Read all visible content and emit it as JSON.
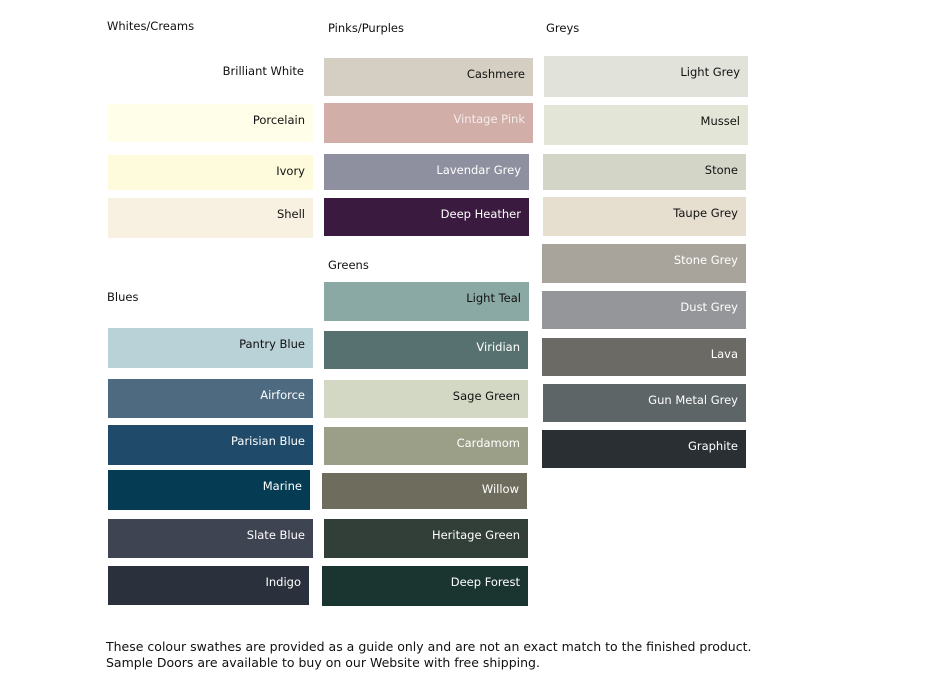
{
  "groups": [
    {
      "title": "Whites/Creams",
      "swatches": [
        {
          "name": "Brilliant White",
          "color": "#ffffff",
          "text_color": "#111111"
        },
        {
          "name": "Porcelain",
          "color": "#fefee9",
          "text_color": "#111111"
        },
        {
          "name": "Ivory",
          "color": "#fdfbdc",
          "text_color": "#111111"
        },
        {
          "name": "Shell",
          "color": "#f8f0e0",
          "text_color": "#111111"
        }
      ]
    },
    {
      "title": "Blues",
      "swatches": [
        {
          "name": "Pantry Blue",
          "color": "#b9d2d8",
          "text_color": "#111111"
        },
        {
          "name": "Airforce",
          "color": "#4e6a80",
          "text_color": "#ffffff"
        },
        {
          "name": "Parisian Blue",
          "color": "#1f4a6a",
          "text_color": "#ffffff"
        },
        {
          "name": "Marine",
          "color": "#053c54",
          "text_color": "#ffffff"
        },
        {
          "name": "Slate Blue",
          "color": "#3e4451",
          "text_color": "#ffffff"
        },
        {
          "name": "Indigo",
          "color": "#2a313d",
          "text_color": "#ffffff"
        }
      ]
    },
    {
      "title": "Pinks/Purples",
      "swatches": [
        {
          "name": "Cashmere",
          "color": "#d5cfc3",
          "text_color": "#111111"
        },
        {
          "name": "Vintage Pink",
          "color": "#d1aea7",
          "text_color": "#f4ecea"
        },
        {
          "name": "Lavendar Grey",
          "color": "#8e909f",
          "text_color": "#ffffff"
        },
        {
          "name": "Deep Heather",
          "color": "#3a1a3e",
          "text_color": "#ffffff"
        }
      ]
    },
    {
      "title": "Greens",
      "swatches": [
        {
          "name": "Light Teal",
          "color": "#8ba9a4",
          "text_color": "#111111"
        },
        {
          "name": "Viridian",
          "color": "#577070",
          "text_color": "#ffffff"
        },
        {
          "name": "Sage Green",
          "color": "#d3d8c4",
          "text_color": "#111111"
        },
        {
          "name": "Cardamom",
          "color": "#9c9f88",
          "text_color": "#ffffff"
        },
        {
          "name": "Willow",
          "color": "#6e6d5d",
          "text_color": "#ffffff"
        },
        {
          "name": "Heritage Green",
          "color": "#323f38",
          "text_color": "#ffffff"
        },
        {
          "name": "Deep Forest",
          "color": "#1a3530",
          "text_color": "#ffffff"
        }
      ]
    },
    {
      "title": "Greys",
      "swatches": [
        {
          "name": "Light Grey",
          "color": "#e1e2da",
          "text_color": "#111111"
        },
        {
          "name": "Mussel",
          "color": "#e3e6d6",
          "text_color": "#111111"
        },
        {
          "name": "Stone",
          "color": "#d3d5c7",
          "text_color": "#111111"
        },
        {
          "name": "Taupe Grey",
          "color": "#e6dfd0",
          "text_color": "#111111"
        },
        {
          "name": "Stone Grey",
          "color": "#a8a49c",
          "text_color": "#ffffff"
        },
        {
          "name": "Dust Grey",
          "color": "#959699",
          "text_color": "#ffffff"
        },
        {
          "name": "Lava",
          "color": "#6b6a64",
          "text_color": "#ffffff"
        },
        {
          "name": "Gun Metal Grey",
          "color": "#5d6566",
          "text_color": "#ffffff"
        },
        {
          "name": "Graphite",
          "color": "#2a2f33",
          "text_color": "#ffffff"
        }
      ]
    }
  ],
  "footnote": "These colour swathes are provided as a guide only and are not an exact match to the finished product.  Sample Doors are available to buy on our Website with free shipping."
}
